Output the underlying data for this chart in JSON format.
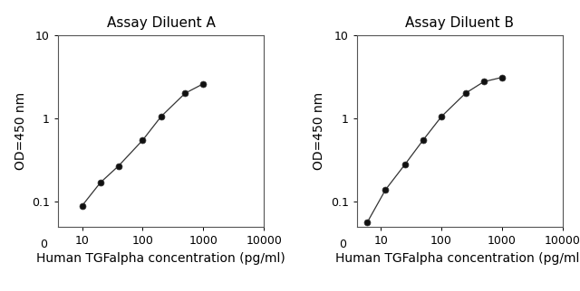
{
  "panel_A": {
    "title": "Assay Diluent A",
    "x": [
      10,
      20,
      40,
      100,
      200,
      500,
      1000
    ],
    "y": [
      0.09,
      0.17,
      0.27,
      0.55,
      1.05,
      2.0,
      2.6
    ],
    "xlabel": "Human TGFalpha concentration (pg/ml)",
    "ylabel": "OD=450 nm",
    "xlim": [
      4,
      10000
    ],
    "ylim": [
      0.05,
      10
    ]
  },
  "panel_B": {
    "title": "Assay Diluent B",
    "x": [
      6,
      12,
      25,
      50,
      100,
      250,
      500,
      1000
    ],
    "y": [
      0.057,
      0.14,
      0.28,
      0.55,
      1.05,
      2.0,
      2.75,
      3.1
    ],
    "xlabel": "Human TGFalpha concentration (pg/ml)",
    "ylabel": "OD=450 nm",
    "xlim": [
      4,
      10000
    ],
    "ylim": [
      0.05,
      10
    ]
  },
  "line_color": "#333333",
  "marker": "o",
  "marker_size": 5,
  "marker_facecolor": "#111111",
  "bg_color": "#ffffff",
  "title_fontsize": 11,
  "label_fontsize": 10,
  "tick_fontsize": 9,
  "yticks": [
    0.1,
    1,
    10
  ],
  "ytick_labels": [
    "0.1",
    "1",
    "10"
  ],
  "xticks": [
    10,
    100,
    1000,
    10000
  ],
  "xtick_labels": [
    "10",
    "100",
    "1000",
    "10000"
  ]
}
